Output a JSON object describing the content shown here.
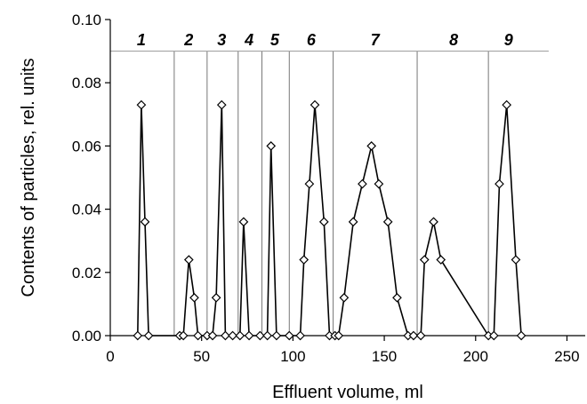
{
  "chart_data": {
    "type": "line",
    "xlabel": "Effluent volume, ml",
    "ylabel": "Contents of particles, rel. units",
    "xlim": [
      0,
      260
    ],
    "ylim": [
      0,
      0.1
    ],
    "x_ticks": [
      0,
      50,
      100,
      150,
      200,
      250
    ],
    "y_ticks": [
      0,
      0.02,
      0.04,
      0.06,
      0.08,
      0.1
    ],
    "x_tick_labels": [
      "0",
      "50",
      "100",
      "150",
      "200",
      "250"
    ],
    "y_tick_labels": [
      "0.00",
      "0.02",
      "0.04",
      "0.06",
      "0.08",
      "0.10"
    ],
    "grid": false,
    "marker": "diamond",
    "reference_line_y": 0.09,
    "fraction_boundaries": [
      35,
      53,
      70,
      83,
      98,
      122,
      168,
      207
    ],
    "fraction_labels": [
      {
        "label": "1",
        "x": 17
      },
      {
        "label": "2",
        "x": 43
      },
      {
        "label": "3",
        "x": 61
      },
      {
        "label": "4",
        "x": 76
      },
      {
        "label": "5",
        "x": 90
      },
      {
        "label": "6",
        "x": 110
      },
      {
        "label": "7",
        "x": 145
      },
      {
        "label": "8",
        "x": 188
      },
      {
        "label": "9",
        "x": 218
      }
    ],
    "series": [
      {
        "points": [
          [
            15,
            0
          ],
          [
            17,
            0.073
          ],
          [
            19,
            0.036
          ],
          [
            21,
            0
          ],
          [
            38,
            0
          ],
          [
            40,
            0
          ],
          [
            43,
            0.024
          ],
          [
            46,
            0.012
          ],
          [
            48,
            0
          ],
          [
            53,
            0
          ],
          [
            56,
            0
          ],
          [
            58,
            0.012
          ],
          [
            61,
            0.073
          ],
          [
            63,
            0
          ],
          [
            67,
            0
          ],
          [
            71,
            0
          ],
          [
            73,
            0.036
          ],
          [
            76,
            0
          ],
          [
            82,
            0
          ],
          [
            86,
            0
          ],
          [
            88,
            0.06
          ],
          [
            91,
            0
          ],
          [
            98,
            0
          ],
          [
            104,
            0
          ],
          [
            106,
            0.024
          ],
          [
            109,
            0.048
          ],
          [
            112,
            0.073
          ],
          [
            117,
            0.036
          ],
          [
            120,
            0
          ],
          [
            123,
            0
          ],
          [
            125,
            0
          ],
          [
            128,
            0.012
          ],
          [
            133,
            0.036
          ],
          [
            138,
            0.048
          ],
          [
            143,
            0.06
          ],
          [
            147,
            0.048
          ],
          [
            152,
            0.036
          ],
          [
            157,
            0.012
          ],
          [
            163,
            0
          ],
          [
            166,
            0
          ],
          [
            170,
            0
          ],
          [
            172,
            0.024
          ],
          [
            177,
            0.036
          ],
          [
            181,
            0.024
          ],
          [
            207,
            0
          ],
          [
            210,
            0
          ],
          [
            213,
            0.048
          ],
          [
            217,
            0.073
          ],
          [
            222,
            0.024
          ],
          [
            225,
            0
          ]
        ]
      }
    ]
  }
}
